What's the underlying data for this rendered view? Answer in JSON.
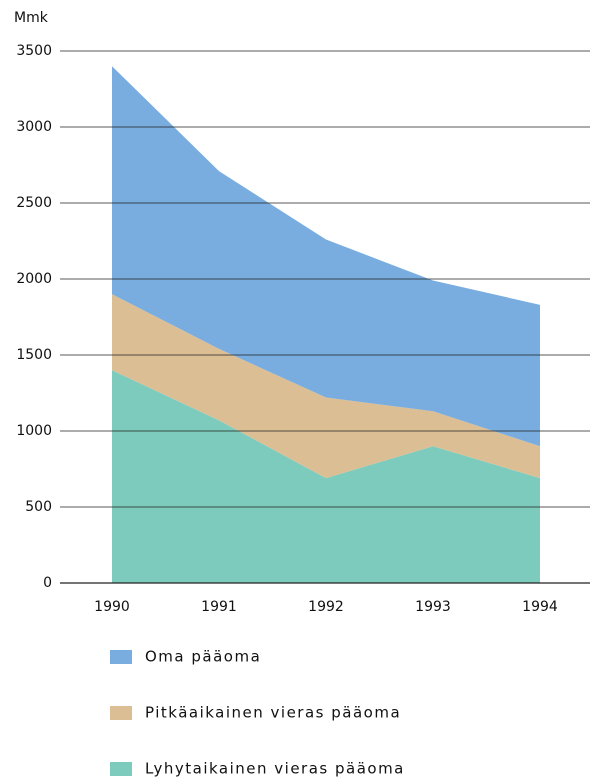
{
  "chart_data": {
    "type": "stacked_area",
    "y_axis_label": "Mmk",
    "categories": [
      "1990",
      "1991",
      "1992",
      "1993",
      "1994"
    ],
    "series": [
      {
        "name": "Oma pääoma",
        "color": "#7aaddf",
        "values": [
          1500,
          1170,
          1040,
          860,
          930
        ]
      },
      {
        "name": "Pitkäaikainen vieras pääoma",
        "color": "#dcbe95",
        "values": [
          500,
          470,
          530,
          230,
          210
        ]
      },
      {
        "name": "Lyhytaikainen vieras pääoma",
        "color": "#7ccbbd",
        "values": [
          1400,
          1070,
          690,
          900,
          690
        ]
      }
    ],
    "ylim": [
      0,
      3500
    ],
    "yticks": [
      0,
      500,
      1000,
      1500,
      2000,
      2500,
      3000,
      3500
    ],
    "grid": true
  }
}
